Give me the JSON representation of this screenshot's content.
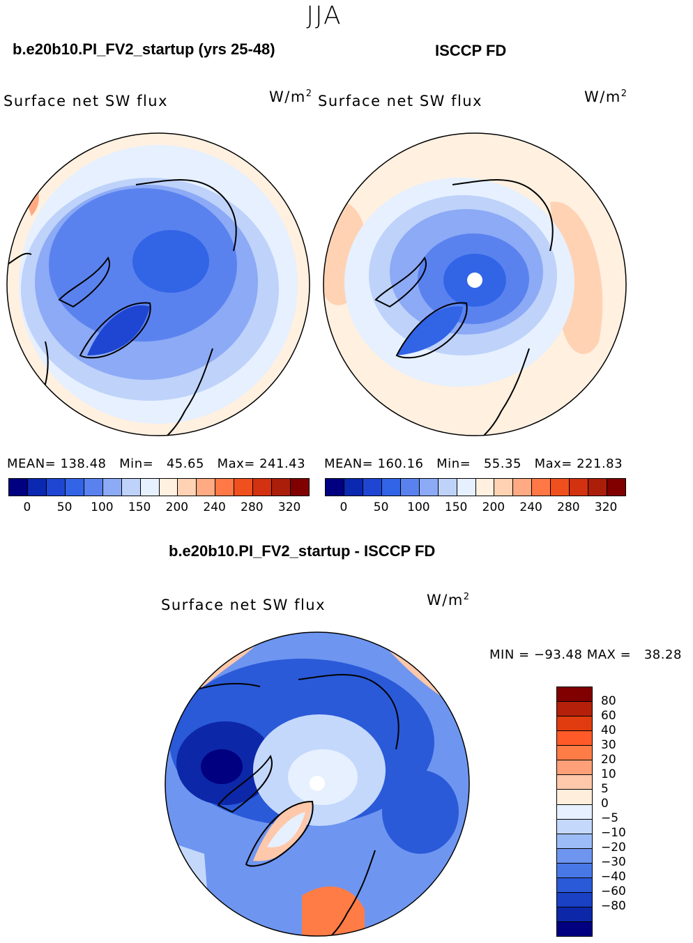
{
  "season": "JJA",
  "panels": [
    {
      "title": "b.e20b10.PI_FV2_startup (yrs 25-48)",
      "variable": "Surface net SW flux",
      "units": "W/m",
      "units_sup": "2",
      "mean_label": "MEAN=",
      "mean": "138.48",
      "min_label": "Min=",
      "min": "45.65",
      "max_label": "Max=",
      "max": "241.43"
    },
    {
      "title": "ISCCP FD",
      "variable": "Surface net SW flux",
      "units": "W/m",
      "units_sup": "2",
      "mean_label": "MEAN=",
      "mean": "160.16",
      "min_label": "Min=",
      "min": "55.35",
      "max_label": "Max=",
      "max": "221.83"
    }
  ],
  "colorbar_top": {
    "colors": [
      "#000080",
      "#0a28b0",
      "#1e46d2",
      "#3264e6",
      "#5a82ef",
      "#8caaf5",
      "#bed2fa",
      "#e6f0ff",
      "#fff0e0",
      "#ffd2b4",
      "#ffaa82",
      "#ff7846",
      "#f0501e",
      "#d2320f",
      "#aa1e0a",
      "#800000"
    ],
    "ticks": [
      "0",
      "50",
      "100",
      "150",
      "200",
      "240",
      "280",
      "320"
    ]
  },
  "difference": {
    "title": "b.e20b10.PI_FV2_startup - ISCCP FD",
    "variable": "Surface net SW flux",
    "units": "W/m",
    "units_sup": "2",
    "min_label": "MIN =",
    "min": "−93.48",
    "max_label": "MAX =",
    "max": "38.28"
  },
  "colorbar_diff": {
    "colors": [
      "#800000",
      "#b4200a",
      "#e03c0f",
      "#ff5a28",
      "#ff7c46",
      "#ffa078",
      "#ffc8aa",
      "#ffeedc",
      "#e6f0ff",
      "#c4d8fc",
      "#9cbcf8",
      "#6e96f0",
      "#4878e6",
      "#2a5ad8",
      "#1a40c4",
      "#0c28a8",
      "#000080"
    ],
    "ticks": [
      "80",
      "60",
      "40",
      "30",
      "20",
      "10",
      "5",
      "0",
      "−5",
      "−10",
      "−20",
      "−30",
      "−40",
      "−60",
      "−80"
    ]
  },
  "chart_data": [
    {
      "type": "heatmap",
      "title": "b.e20b10.PI_FV2_startup (yrs 25-48)",
      "projection": "north polar stereographic",
      "variable": "Surface net SW flux",
      "units": "W/m2",
      "mean": 138.48,
      "min": 45.65,
      "max": 241.43,
      "levels": [
        0,
        25,
        50,
        75,
        100,
        125,
        150,
        175,
        200,
        220,
        240,
        260,
        280,
        300,
        320
      ]
    },
    {
      "type": "heatmap",
      "title": "ISCCP FD",
      "projection": "north polar stereographic",
      "variable": "Surface net SW flux",
      "units": "W/m2",
      "mean": 160.16,
      "min": 55.35,
      "max": 221.83,
      "levels": [
        0,
        25,
        50,
        75,
        100,
        125,
        150,
        175,
        200,
        220,
        240,
        260,
        280,
        300,
        320
      ]
    },
    {
      "type": "heatmap",
      "title": "b.e20b10.PI_FV2_startup - ISCCP FD",
      "projection": "north polar stereographic",
      "variable": "Surface net SW flux",
      "units": "W/m2",
      "min": -93.48,
      "max": 38.28,
      "levels": [
        -80,
        -60,
        -40,
        -30,
        -20,
        -10,
        -5,
        0,
        5,
        10,
        20,
        30,
        40,
        60,
        80
      ]
    }
  ]
}
